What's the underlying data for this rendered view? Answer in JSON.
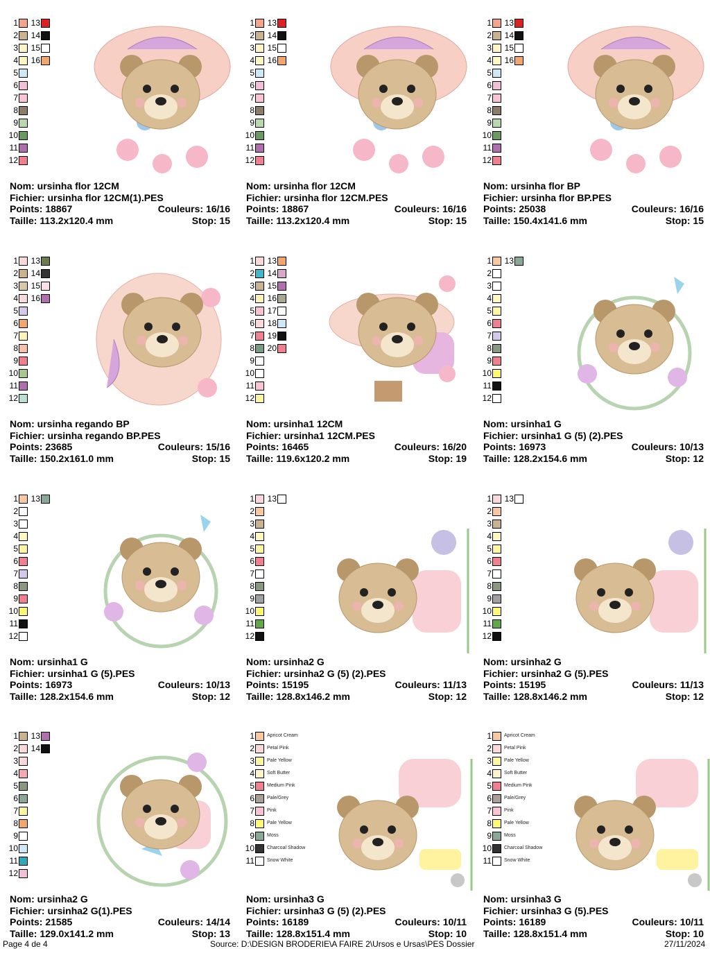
{
  "labels": {
    "nom": "Nom:",
    "fichier": "Fichier:",
    "points": "Points:",
    "couleurs": "Couleurs:",
    "taille": "Taille:",
    "stop": "Stop:"
  },
  "designs": [
    {
      "nom": "ursinha flor 12CM",
      "fichier": "ursinha flor 12CM(1).PES",
      "points": "18867",
      "couleurs": "16/16",
      "taille": "113.2x120.4 mm",
      "stop": "15",
      "swatches": [
        [
          "1",
          "#f3a48a"
        ],
        [
          "13",
          "#dd2020"
        ],
        [
          "2",
          "#c9b28e"
        ],
        [
          "14",
          "#111111"
        ],
        [
          "3",
          "#fff3c8"
        ],
        [
          "15",
          "#ffffff"
        ],
        [
          "4",
          "#fff8c0"
        ],
        [
          "16",
          "#f3a66c"
        ],
        [
          "5",
          "#cfe8f8"
        ],
        [
          "6",
          "#f0c0d8"
        ],
        [
          "7",
          "#f8c4d4"
        ],
        [
          "8",
          "#8c7c6a"
        ],
        [
          "9",
          "#b8d8b0"
        ],
        [
          "10",
          "#6a9a60"
        ],
        [
          "11",
          "#b070b0"
        ],
        [
          "12",
          "#f08090"
        ]
      ]
    },
    {
      "nom": "ursinha flor 12CM",
      "fichier": "ursinha flor 12CM.PES",
      "points": "18867",
      "couleurs": "16/16",
      "taille": "113.2x120.4 mm",
      "stop": "15",
      "swatches": [
        [
          "1",
          "#f3a48a"
        ],
        [
          "13",
          "#dd2020"
        ],
        [
          "2",
          "#c9b28e"
        ],
        [
          "14",
          "#111111"
        ],
        [
          "3",
          "#fff3c8"
        ],
        [
          "15",
          "#ffffff"
        ],
        [
          "4",
          "#fff8c0"
        ],
        [
          "16",
          "#f3a66c"
        ],
        [
          "5",
          "#cfe8f8"
        ],
        [
          "6",
          "#f0c0d8"
        ],
        [
          "7",
          "#f8c4d4"
        ],
        [
          "8",
          "#8c7c6a"
        ],
        [
          "9",
          "#b8d8b0"
        ],
        [
          "10",
          "#6a9a60"
        ],
        [
          "11",
          "#b070b0"
        ],
        [
          "12",
          "#f08090"
        ]
      ]
    },
    {
      "nom": "ursinha flor BP",
      "fichier": "ursinha flor BP.PES",
      "points": "25038",
      "couleurs": "16/16",
      "taille": "150.4x141.6 mm",
      "stop": "15",
      "swatches": [
        [
          "1",
          "#f3a48a"
        ],
        [
          "13",
          "#dd2020"
        ],
        [
          "2",
          "#c9b28e"
        ],
        [
          "14",
          "#111111"
        ],
        [
          "3",
          "#fff3c8"
        ],
        [
          "15",
          "#ffffff"
        ],
        [
          "4",
          "#fff8c0"
        ],
        [
          "16",
          "#f3a66c"
        ],
        [
          "5",
          "#cfe8f8"
        ],
        [
          "6",
          "#f0c0d8"
        ],
        [
          "7",
          "#f8c4d4"
        ],
        [
          "8",
          "#8c7c6a"
        ],
        [
          "9",
          "#b8d8b0"
        ],
        [
          "10",
          "#6a9a60"
        ],
        [
          "11",
          "#b070b0"
        ],
        [
          "12",
          "#f08090"
        ]
      ]
    },
    {
      "nom": "ursinha regando BP",
      "fichier": "ursinha regando BP.PES",
      "points": "23685",
      "couleurs": "15/16",
      "taille": "150.2x161.0 mm",
      "stop": "15",
      "swatches": [
        [
          "1",
          "#fbd8dc"
        ],
        [
          "13",
          "#6e7a50"
        ],
        [
          "2",
          "#c9b28e"
        ],
        [
          "14",
          "#333333"
        ],
        [
          "3",
          "#d8c8a8"
        ],
        [
          "15",
          "#fbe0ec"
        ],
        [
          "4",
          "#fbd8dc"
        ],
        [
          "16",
          "#b070b0"
        ],
        [
          "5",
          "#d4c8ec"
        ],
        [
          "6",
          "#f3a66c"
        ],
        [
          "7",
          "#fff3b8"
        ],
        [
          "8",
          "#f8c0a8"
        ],
        [
          "9",
          "#f08090"
        ],
        [
          "10",
          "#a8c890"
        ],
        [
          "11",
          "#b070b0"
        ],
        [
          "12",
          "#b8e0d0"
        ]
      ]
    },
    {
      "nom": "ursinha1 12CM",
      "fichier": "ursinha1 12CM.PES",
      "points": "16465",
      "couleurs": "16/20",
      "taille": "119.6x120.2 mm",
      "stop": "19",
      "swatches": [
        [
          "1",
          "#fbd8dc"
        ],
        [
          "13",
          "#f3a66c"
        ],
        [
          "2",
          "#40b8c8"
        ],
        [
          "14",
          "#d8a8c8"
        ],
        [
          "3",
          "#c9b28e"
        ],
        [
          "15",
          "#b070b0"
        ],
        [
          "4",
          "#fff3b8"
        ],
        [
          "16",
          "#a8a890"
        ],
        [
          "5",
          "#f8c4d4"
        ],
        [
          "17",
          "#ffffff"
        ],
        [
          "6",
          "#fbd8dc"
        ],
        [
          "18",
          "#cfe8f8"
        ],
        [
          "7",
          "#f08090"
        ],
        [
          "19",
          "#111111"
        ],
        [
          "8",
          "#7a9a88"
        ],
        [
          "20",
          "#f08090"
        ],
        [
          "9",
          "#ffffff"
        ],
        [
          "10",
          "#ffffff"
        ],
        [
          "11",
          "#f8c4d4"
        ],
        [
          "12",
          "#fff8a0"
        ]
      ]
    },
    {
      "nom": "ursinha1 G",
      "fichier": "ursinha1 G (5) (2).PES",
      "points": "16973",
      "couleurs": "10/13",
      "taille": "128.2x154.6 mm",
      "stop": "12",
      "swatches": [
        [
          "1",
          "#f8c8a0"
        ],
        [
          "13",
          "#8aa898"
        ],
        [
          "2",
          "#ffffff"
        ],
        [
          "3",
          "#ffffff"
        ],
        [
          "4",
          "#fff8c0"
        ],
        [
          "5",
          "#fff8a0"
        ],
        [
          "6",
          "#f08090"
        ],
        [
          "7",
          "#d4c8ec"
        ],
        [
          "8",
          "#8a9880"
        ],
        [
          "9",
          "#f08090"
        ],
        [
          "10",
          "#fff870"
        ],
        [
          "11",
          "#111111"
        ],
        [
          "12",
          "#ffffff"
        ]
      ]
    },
    {
      "nom": "ursinha1 G",
      "fichier": "ursinha1 G (5).PES",
      "points": "16973",
      "couleurs": "10/13",
      "taille": "128.2x154.6 mm",
      "stop": "12",
      "swatches": [
        [
          "1",
          "#f8c8a0"
        ],
        [
          "13",
          "#8aa898"
        ],
        [
          "2",
          "#ffffff"
        ],
        [
          "3",
          "#ffffff"
        ],
        [
          "4",
          "#fff8c0"
        ],
        [
          "5",
          "#fff8a0"
        ],
        [
          "6",
          "#f08090"
        ],
        [
          "7",
          "#d4c8ec"
        ],
        [
          "8",
          "#8a9880"
        ],
        [
          "9",
          "#f08090"
        ],
        [
          "10",
          "#fff870"
        ],
        [
          "11",
          "#111111"
        ],
        [
          "12",
          "#ffffff"
        ]
      ]
    },
    {
      "nom": "ursinha2 G",
      "fichier": "ursinha2 G (5) (2).PES",
      "points": "15195",
      "couleurs": "11/13",
      "taille": "128.8x146.2 mm",
      "stop": "12",
      "swatches": [
        [
          "1",
          "#fbd8dc"
        ],
        [
          "13",
          "#ffffff"
        ],
        [
          "2",
          "#f8c8a0"
        ],
        [
          "3",
          "#c9b28e"
        ],
        [
          "4",
          "#fff8c0"
        ],
        [
          "5",
          "#fff8a0"
        ],
        [
          "6",
          "#f08090"
        ],
        [
          "7",
          "#ffffff"
        ],
        [
          "8",
          "#8a9880"
        ],
        [
          "9",
          "#a0a0a0"
        ],
        [
          "10",
          "#fff870"
        ],
        [
          "11",
          "#60a848"
        ],
        [
          "12",
          "#111111"
        ]
      ]
    },
    {
      "nom": "ursinha2 G",
      "fichier": "ursinha2 G (5).PES",
      "points": "15195",
      "couleurs": "11/13",
      "taille": "128.8x146.2 mm",
      "stop": "12",
      "swatches": [
        [
          "1",
          "#fbd8dc"
        ],
        [
          "13",
          "#ffffff"
        ],
        [
          "2",
          "#f8c8a0"
        ],
        [
          "3",
          "#c9b28e"
        ],
        [
          "4",
          "#fff8c0"
        ],
        [
          "5",
          "#fff8a0"
        ],
        [
          "6",
          "#f08090"
        ],
        [
          "7",
          "#ffffff"
        ],
        [
          "8",
          "#8a9880"
        ],
        [
          "9",
          "#a0a0a0"
        ],
        [
          "10",
          "#fff870"
        ],
        [
          "11",
          "#60a848"
        ],
        [
          "12",
          "#111111"
        ]
      ]
    },
    {
      "nom": "ursinha2 G",
      "fichier": "ursinha2 G(1).PES",
      "points": "21585",
      "couleurs": "14/14",
      "taille": "129.0x141.2 mm",
      "stop": "13",
      "swatches": [
        [
          "1",
          "#c9b28e"
        ],
        [
          "13",
          "#b070b0"
        ],
        [
          "2",
          "#fbd8dc"
        ],
        [
          "14",
          "#111111"
        ],
        [
          "3",
          "#fbd8dc"
        ],
        [
          "4",
          "#f8a8b0"
        ],
        [
          "5",
          "#8a9880"
        ],
        [
          "6",
          "#8aa898"
        ],
        [
          "7",
          "#fff8a0"
        ],
        [
          "8",
          "#f3a66c"
        ],
        [
          "9",
          "#ffffff"
        ],
        [
          "10",
          "#cfe8f8"
        ],
        [
          "11",
          "#30a8b8"
        ],
        [
          "12",
          "#f0c0d8"
        ]
      ]
    },
    {
      "nom": "ursinha3 G",
      "fichier": "ursinha3 G (5) (2).PES",
      "points": "16189",
      "couleurs": "10/11",
      "taille": "128.8x151.4 mm",
      "stop": "10",
      "named": true,
      "swatches": [
        [
          "1",
          "#f8c8a0",
          "Apricot Cream"
        ],
        [
          "2",
          "#fbd8dc",
          "Petal Pink"
        ],
        [
          "3",
          "#fff8a0",
          "Pale Yellow"
        ],
        [
          "4",
          "#fff3c8",
          "Soft Butter"
        ],
        [
          "5",
          "#f08090",
          "Medium Pink"
        ],
        [
          "6",
          "#a8a098",
          "Pale/Grey"
        ],
        [
          "7",
          "#f8c4d4",
          "Pink"
        ],
        [
          "8",
          "#fff870",
          "Pale Yellow"
        ],
        [
          "9",
          "#8aa898",
          "Moss"
        ],
        [
          "10",
          "#333333",
          "Charcoal Shadow"
        ],
        [
          "11",
          "#ffffff",
          "Snow White"
        ]
      ]
    },
    {
      "nom": "ursinha3 G",
      "fichier": "ursinha3 G (5).PES",
      "points": "16189",
      "couleurs": "10/11",
      "taille": "128.8x151.4 mm",
      "stop": "10",
      "named": true,
      "swatches": [
        [
          "1",
          "#f8c8a0",
          "Apricot Cream"
        ],
        [
          "2",
          "#fbd8dc",
          "Petal Pink"
        ],
        [
          "3",
          "#fff8a0",
          "Pale Yellow"
        ],
        [
          "4",
          "#fff3c8",
          "Soft Butter"
        ],
        [
          "5",
          "#f08090",
          "Medium Pink"
        ],
        [
          "6",
          "#a8a098",
          "Pale/Grey"
        ],
        [
          "7",
          "#f8c4d4",
          "Pink"
        ],
        [
          "8",
          "#fff870",
          "Pale Yellow"
        ],
        [
          "9",
          "#8aa898",
          "Moss"
        ],
        [
          "10",
          "#333333",
          "Charcoal Shadow"
        ],
        [
          "11",
          "#ffffff",
          "Snow White"
        ]
      ]
    }
  ],
  "footer": {
    "page": "Page 4 de 4",
    "source": "Source: D:\\DESIGN BRODERIE\\A FAIRE 2\\Ursos e Ursas\\PES Dossier",
    "date": "27/11/2024"
  }
}
